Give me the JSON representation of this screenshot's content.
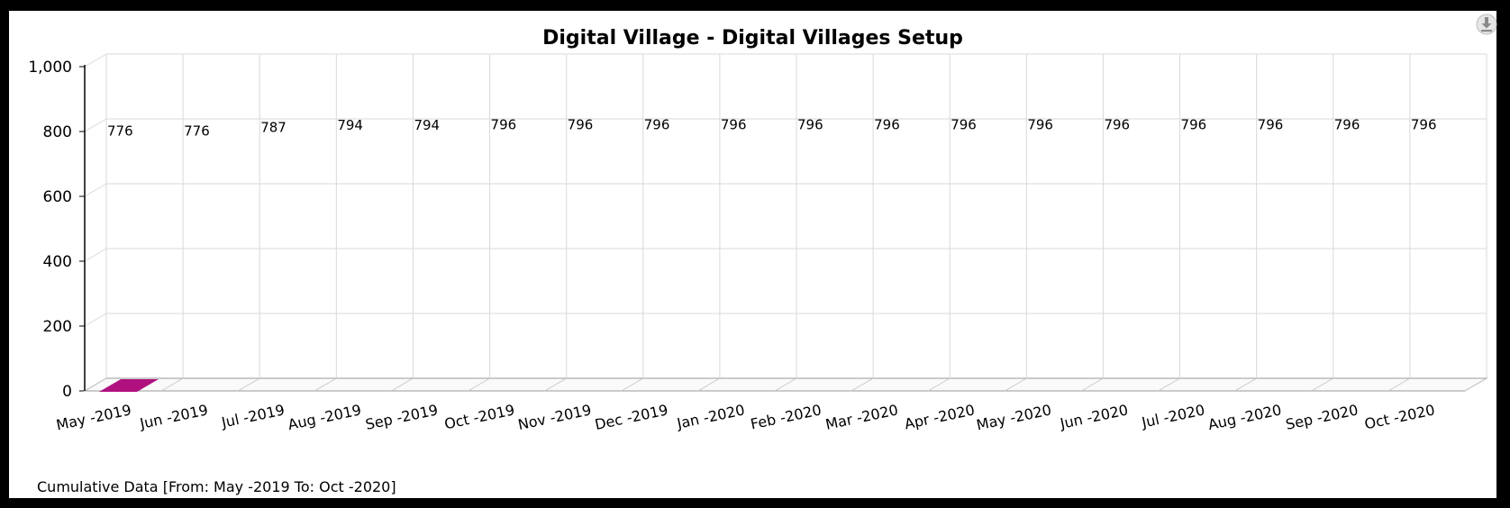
{
  "chart_data": {
    "type": "bar",
    "title": "Digital Village - Digital Villages Setup",
    "categories": [
      "May -2019",
      "Jun -2019",
      "Jul -2019",
      "Aug -2019",
      "Sep -2019",
      "Oct -2019",
      "Nov -2019",
      "Dec -2019",
      "Jan -2020",
      "Feb -2020",
      "Mar -2020",
      "Apr -2020",
      "May -2020",
      "Jun -2020",
      "Jul -2020",
      "Aug -2020",
      "Sep -2020",
      "Oct -2020"
    ],
    "values": [
      776,
      776,
      787,
      794,
      794,
      796,
      796,
      796,
      796,
      796,
      796,
      796,
      796,
      796,
      796,
      796,
      796,
      796
    ],
    "ylim": [
      0,
      1000
    ],
    "yticks": [
      0,
      200,
      400,
      600,
      800,
      1000
    ],
    "ytick_labels": [
      "0",
      "200",
      "400",
      "600",
      "800",
      "1,000"
    ],
    "grid": true,
    "style": "3d",
    "bar_color": "#B0117F"
  },
  "footnote": "Cumulative Data [From: May -2019 To: Oct -2020]",
  "colors": {
    "background": "#000000",
    "panel": "#FFFFFF",
    "grid": "#D9D9D9",
    "axis": "#000000",
    "floor": "#9A9A9A"
  },
  "icons": {
    "download": "download-icon"
  }
}
